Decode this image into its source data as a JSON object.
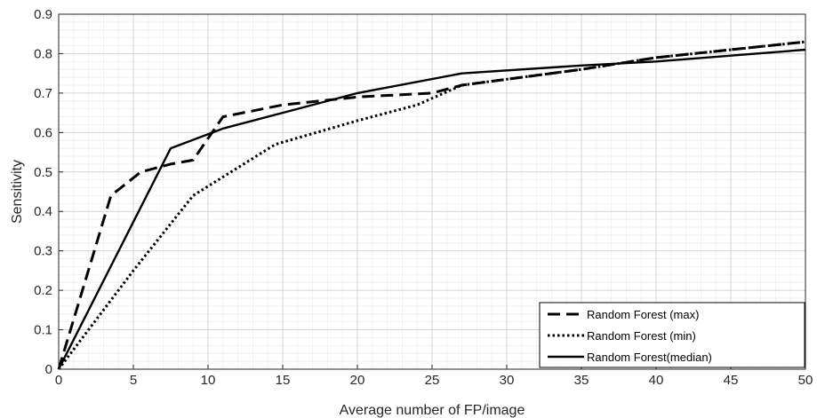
{
  "chart_data": {
    "type": "line",
    "xlabel": "Average number of FP/image",
    "ylabel": "Sensitivity",
    "xlim": [
      0,
      50
    ],
    "ylim": [
      0,
      0.9
    ],
    "x_ticks": [
      0,
      5,
      10,
      15,
      20,
      25,
      30,
      35,
      40,
      45,
      50
    ],
    "y_ticks": [
      0,
      0.1,
      0.2,
      0.3,
      0.4,
      0.5,
      0.6,
      0.7,
      0.8,
      0.9
    ],
    "grid": true,
    "minor_grid": true,
    "legend_position": "bottom-right",
    "series": [
      {
        "name": "Random Forest (max)",
        "style": "dashed",
        "color": "#000000",
        "x": [
          0,
          3.5,
          5.5,
          7.5,
          9,
          11,
          15,
          20,
          25,
          27,
          35,
          40,
          50
        ],
        "y": [
          0,
          0.44,
          0.5,
          0.52,
          0.53,
          0.64,
          0.67,
          0.69,
          0.7,
          0.72,
          0.76,
          0.79,
          0.83
        ]
      },
      {
        "name": "Random Forest (min)",
        "style": "dotted",
        "color": "#000000",
        "x": [
          0,
          5,
          9,
          14.5,
          20,
          24,
          27,
          35,
          40,
          50
        ],
        "y": [
          0,
          0.25,
          0.44,
          0.57,
          0.63,
          0.67,
          0.72,
          0.76,
          0.79,
          0.83
        ]
      },
      {
        "name": "Random Forest(median)",
        "style": "solid",
        "color": "#000000",
        "x": [
          0,
          7.5,
          11,
          15,
          20,
          27,
          35,
          40,
          50
        ],
        "y": [
          0,
          0.56,
          0.61,
          0.65,
          0.7,
          0.75,
          0.77,
          0.78,
          0.81
        ]
      }
    ]
  }
}
